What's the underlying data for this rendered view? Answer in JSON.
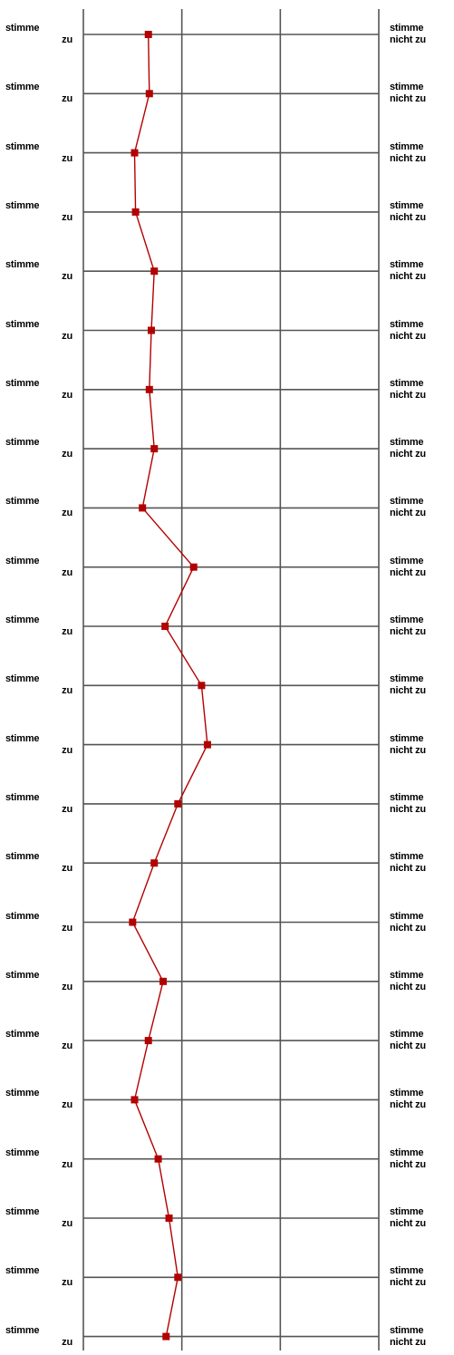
{
  "chart_data": {
    "type": "line",
    "orientation": "vertical-profile",
    "x_scale": {
      "min": 1,
      "max": 4
    },
    "x_axis_ticks": [
      1,
      2,
      3,
      4
    ],
    "left_anchor": {
      "line1": "stimme",
      "line2": "zu"
    },
    "right_anchor": {
      "line1": "stimme",
      "line2": "nicht zu"
    },
    "item_count": 23,
    "values": [
      1.66,
      1.67,
      1.52,
      1.53,
      1.72,
      1.69,
      1.67,
      1.72,
      1.6,
      2.12,
      1.83,
      2.2,
      2.26,
      1.96,
      1.72,
      1.5,
      1.81,
      1.66,
      1.52,
      1.76,
      1.87,
      1.96,
      1.84
    ],
    "series_color": "#b30000",
    "grid": true
  }
}
